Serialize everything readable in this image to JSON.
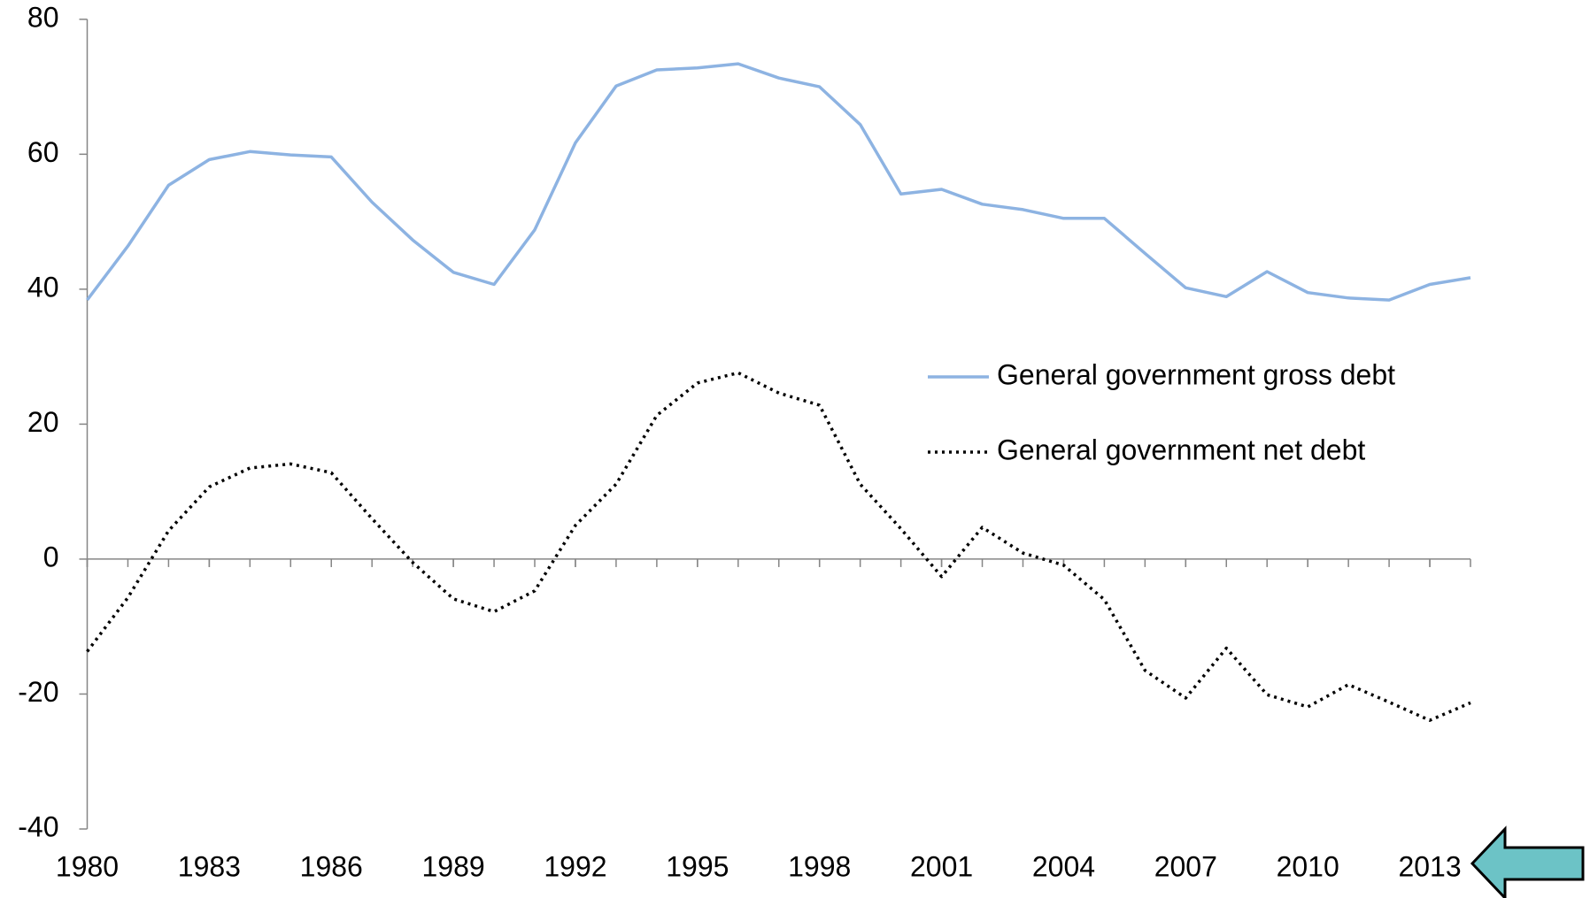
{
  "chart_data": {
    "type": "line",
    "x": [
      1980,
      1981,
      1982,
      1983,
      1984,
      1985,
      1986,
      1987,
      1988,
      1989,
      1990,
      1991,
      1992,
      1993,
      1994,
      1995,
      1996,
      1997,
      1998,
      1999,
      2000,
      2001,
      2002,
      2003,
      2004,
      2005,
      2006,
      2007,
      2008,
      2009,
      2010,
      2011,
      2012,
      2013,
      2014
    ],
    "series": [
      {
        "name": "General government gross debt",
        "color": "#8db3e2",
        "dash": "solid",
        "values": [
          38.4,
          46.4,
          55.4,
          59.2,
          60.4,
          59.9,
          59.6,
          52.9,
          47.3,
          42.5,
          40.7,
          48.8,
          61.7,
          70.1,
          72.5,
          72.8,
          73.4,
          71.3,
          70.0,
          64.4,
          54.1,
          54.8,
          52.6,
          51.8,
          50.5,
          50.5,
          45.3,
          40.2,
          38.9,
          42.6,
          39.5,
          38.7,
          38.4,
          40.7,
          41.7
        ]
      },
      {
        "name": "General government net debt",
        "color": "#000000",
        "dash": "dotted",
        "values": [
          -13.7,
          -5.7,
          4.2,
          10.7,
          13.5,
          14.1,
          12.8,
          6.0,
          -0.5,
          -5.9,
          -7.8,
          -4.7,
          5.0,
          11.1,
          21.3,
          26.1,
          27.6,
          24.6,
          22.8,
          11.1,
          4.5,
          -2.6,
          4.7,
          0.9,
          -0.9,
          -6.0,
          -16.5,
          -20.6,
          -13.2,
          -20.1,
          -21.9,
          -18.6,
          -21.2,
          -23.9,
          -21.3
        ]
      }
    ],
    "xlim": [
      1980,
      2014
    ],
    "xticks": [
      1980,
      1983,
      1986,
      1989,
      1992,
      1995,
      1998,
      2001,
      2004,
      2007,
      2010,
      2013
    ],
    "ylim": [
      -40,
      80
    ],
    "yticks": [
      -40,
      -20,
      0,
      20,
      40,
      60,
      80
    ],
    "grid": false,
    "legend": "right"
  }
}
